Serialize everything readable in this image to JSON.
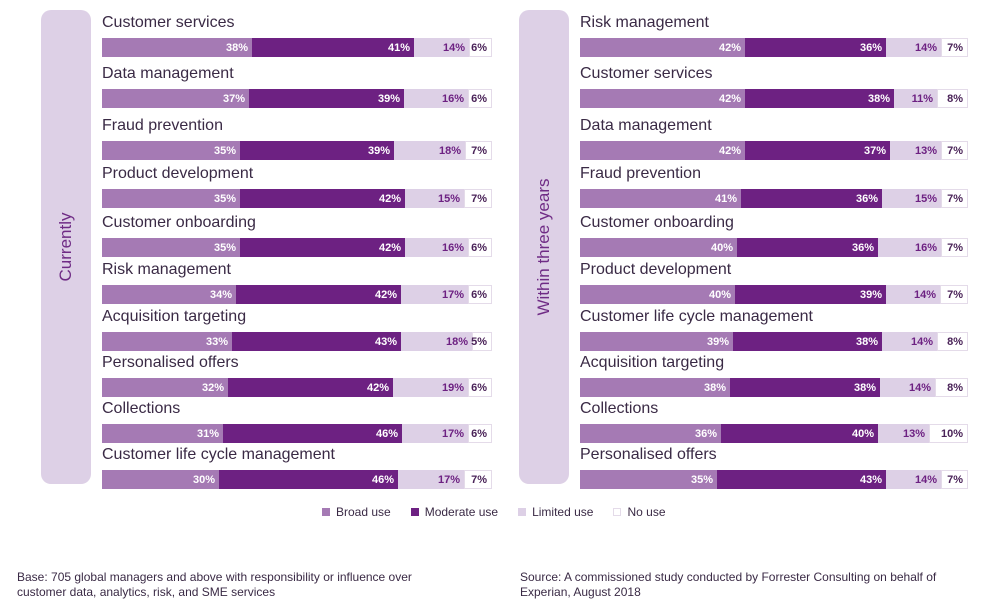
{
  "colors": {
    "broad": "#a57ab4",
    "moderate": "#6d2182",
    "limited": "#ddd0e6",
    "none": "#ffffff"
  },
  "legend": [
    "Broad use",
    "Moderate use",
    "Limited use",
    "No use"
  ],
  "chart_data": [
    {
      "type": "bar",
      "orientation": "horizontal",
      "stacked": true,
      "title": "Currently",
      "categories": [
        "Customer services",
        "Data management",
        "Fraud prevention",
        "Product development",
        "Customer onboarding",
        "Risk management",
        "Acquisition targeting",
        "Personalised offers",
        "Collections",
        "Customer life cycle management"
      ],
      "series": [
        {
          "name": "Broad use",
          "values": [
            38,
            37,
            35,
            35,
            35,
            34,
            33,
            32,
            31,
            30
          ]
        },
        {
          "name": "Moderate use",
          "values": [
            41,
            39,
            39,
            42,
            42,
            42,
            43,
            42,
            46,
            46
          ]
        },
        {
          "name": "Limited use",
          "values": [
            14,
            16,
            18,
            15,
            16,
            17,
            18,
            19,
            17,
            17
          ]
        },
        {
          "name": "No use",
          "values": [
            6,
            6,
            7,
            7,
            6,
            6,
            5,
            6,
            6,
            7
          ]
        }
      ],
      "unit": "%"
    },
    {
      "type": "bar",
      "orientation": "horizontal",
      "stacked": true,
      "title": "Within three years",
      "categories": [
        "Risk management",
        "Customer services",
        "Data management",
        "Fraud prevention",
        "Customer onboarding",
        "Product development",
        "Customer life cycle management",
        "Acquisition targeting",
        "Collections",
        "Personalised offers"
      ],
      "series": [
        {
          "name": "Broad use",
          "values": [
            42,
            42,
            42,
            41,
            40,
            40,
            39,
            38,
            36,
            35
          ]
        },
        {
          "name": "Moderate use",
          "values": [
            36,
            38,
            37,
            36,
            36,
            39,
            38,
            38,
            40,
            43
          ]
        },
        {
          "name": "Limited use",
          "values": [
            14,
            11,
            13,
            15,
            16,
            14,
            14,
            14,
            13,
            14
          ]
        },
        {
          "name": "No use",
          "values": [
            7,
            8,
            7,
            7,
            7,
            7,
            8,
            8,
            10,
            7
          ]
        }
      ],
      "unit": "%"
    }
  ],
  "base_note": "Base: 705 global managers and above with responsibility or influence over customer data, analytics, risk, and SME services",
  "source_note": "Source: A commissioned study conducted by Forrester Consulting on behalf of Experian, August 2018"
}
